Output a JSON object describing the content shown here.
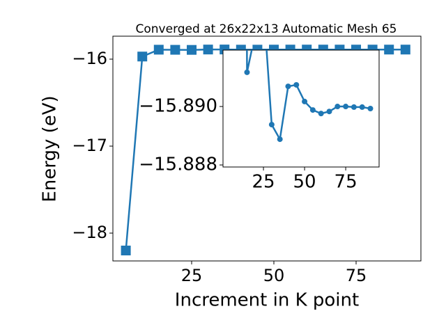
{
  "chart_data": {
    "type": "line",
    "title": "Converged at 26x22x13 Automatic Mesh 65",
    "xlabel": "Increment in K point",
    "ylabel": "Energy (eV)",
    "x": [
      5,
      10,
      15,
      20,
      25,
      30,
      35,
      40,
      45,
      50,
      55,
      60,
      65,
      70,
      75,
      80,
      85,
      90
    ],
    "series": [
      {
        "name": "Energy",
        "color": "#1f77b4",
        "values": [
          -18.2,
          -15.97,
          -15.89117,
          -15.8925,
          -15.8935,
          -15.88938,
          -15.88888,
          -15.89069,
          -15.89074,
          -15.89017,
          -15.88988,
          -15.88976,
          -15.88983,
          -15.89,
          -15.89,
          -15.88998,
          -15.88998,
          -15.88993
        ]
      }
    ],
    "xlim": [
      1.06,
      94.7
    ],
    "ylim": [
      -18.32,
      -15.736
    ],
    "xticks": [
      25,
      50,
      75
    ],
    "yticks": [
      {
        "value": -16,
        "label": "−16"
      },
      {
        "value": -17,
        "label": "−17"
      },
      {
        "value": -18,
        "label": "−18"
      }
    ],
    "inset": {
      "xlim": [
        0.4,
        95.3
      ],
      "ylim": [
        -15.88793,
        -15.89193
      ],
      "xticks": [
        25,
        50,
        75
      ],
      "yticks": [
        {
          "value": -15.89,
          "label": "−15.890"
        },
        {
          "value": -15.888,
          "label": "−15.888"
        }
      ]
    }
  }
}
